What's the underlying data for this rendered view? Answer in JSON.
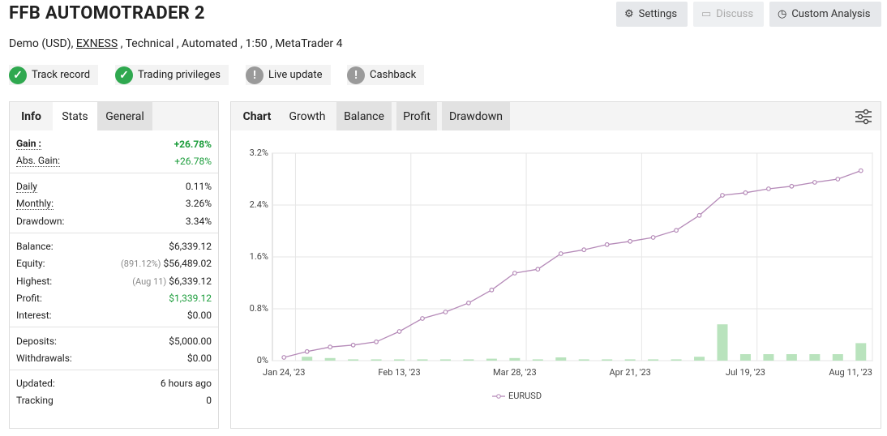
{
  "header": {
    "title": "FFB AUTOMOTRADER 2",
    "subtitle": {
      "before": "Demo (USD),",
      "broker": "EXNESS",
      "after": ", Technical , Automated , 1:50 , MetaTrader 4"
    },
    "buttons": [
      {
        "label": "Settings",
        "enabled": true
      },
      {
        "label": "Discuss",
        "enabled": false
      },
      {
        "label": "Custom Analysis",
        "enabled": true
      }
    ],
    "badges": [
      {
        "label": "Track record",
        "status": "ok"
      },
      {
        "label": "Trading privileges",
        "status": "ok"
      },
      {
        "label": "Live update",
        "status": "warn"
      },
      {
        "label": "Cashback",
        "status": "warn"
      }
    ]
  },
  "stats_panel": {
    "tabs": [
      "Info",
      "Stats",
      "General"
    ],
    "groups": [
      [
        {
          "label": "Gain :",
          "value": "+26.78%",
          "color": "#1a9c3a"
        },
        {
          "label": "Abs. Gain:",
          "value": "+26.78%",
          "color": "#1a9c3a"
        }
      ],
      [
        {
          "label": "Daily",
          "value": "0.11%"
        },
        {
          "label": "Monthly:",
          "value": "3.26%"
        },
        {
          "label": "Drawdown:",
          "value": "3.34%"
        }
      ],
      [
        {
          "label": "Balance:",
          "value": "$6,339.12"
        },
        {
          "label": "Equity:",
          "note": "(891.12%)",
          "value": "$56,489.02"
        },
        {
          "label": "Highest:",
          "note": "(Aug 11)",
          "value": "$6,339.12"
        },
        {
          "label": "Profit:",
          "value": "$1,339.12",
          "color": "#1a9c3a"
        },
        {
          "label": "Interest:",
          "value": "$0.00"
        }
      ],
      [
        {
          "label": "Deposits:",
          "value": "$5,000.00"
        },
        {
          "label": "Withdrawals:",
          "value": "$0.00"
        }
      ],
      [
        {
          "label": "Updated:",
          "value": "6 hours ago"
        },
        {
          "label": "Tracking",
          "value": "0"
        }
      ]
    ]
  },
  "chart_panel": {
    "tabs": [
      "Chart",
      "Growth",
      "Balance",
      "Profit",
      "Drawdown"
    ],
    "chart": {
      "type": "line",
      "categories": [
        "Jan 24, '23",
        null,
        null,
        null,
        null,
        "Feb 13, '23",
        null,
        null,
        null,
        null,
        "Mar 28, '23",
        null,
        null,
        null,
        null,
        "Apr 21, '23",
        null,
        null,
        null,
        null,
        "Jul 19, '23",
        null,
        null,
        null,
        null,
        "Aug 11, '23"
      ],
      "series": [
        {
          "name": "EURUSD",
          "color": "#b58ab8",
          "values": [
            0.05,
            0.14,
            0.21,
            0.24,
            0.29,
            0.45,
            0.65,
            0.75,
            0.89,
            1.09,
            1.35,
            1.41,
            1.65,
            1.71,
            1.79,
            1.84,
            1.9,
            2.01,
            2.24,
            2.55,
            2.59,
            2.65,
            2.69,
            2.75,
            2.8,
            2.93
          ]
        },
        {
          "type": "bar",
          "color": "#b9e3bd",
          "values": [
            null,
            0.06,
            0.04,
            0.02,
            0.02,
            0.02,
            0.02,
            0.02,
            0.02,
            0.03,
            0.04,
            0.02,
            0.05,
            0.02,
            0.02,
            0.02,
            0.02,
            0.02,
            0.06,
            0.56,
            0.1,
            0.1,
            0.1,
            0.1,
            0.1,
            0.27
          ]
        }
      ],
      "ylim": [
        0,
        3.2
      ],
      "yticks": [
        {
          "value": 0,
          "label": "0%"
        },
        {
          "value": 0.8,
          "label": "0.8%"
        },
        {
          "value": 1.6,
          "label": "1.6%"
        },
        {
          "value": 2.4,
          "label": "2.4%"
        },
        {
          "value": 3.2,
          "label": "3.2%"
        }
      ],
      "grid": true,
      "legend": "bottom"
    }
  }
}
